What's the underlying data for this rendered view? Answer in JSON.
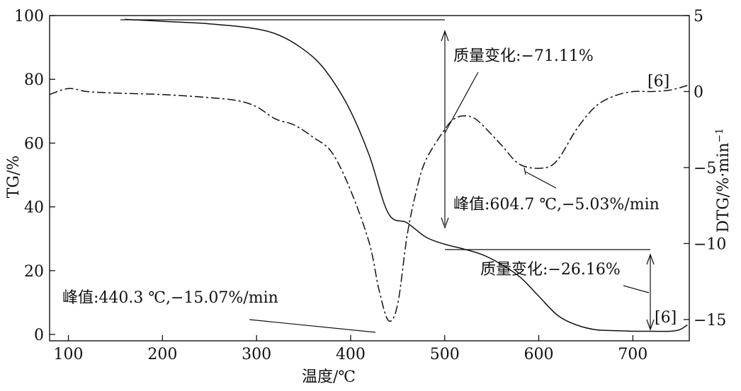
{
  "chart_data": {
    "type": "line",
    "xlabel": "温度/℃",
    "ylabel_left": "TG/%",
    "ylabel_right": "DTG/%·min",
    "ylabel_right_sup": "−1",
    "xlim": [
      80,
      760
    ],
    "ylim_left": [
      -2,
      100
    ],
    "ylim_right": [
      -16.4,
      5
    ],
    "x_ticks": [
      100,
      200,
      300,
      400,
      500,
      600,
      700
    ],
    "x_tick_labels": [
      "100",
      "200",
      "300",
      "400",
      "500",
      "600",
      "700"
    ],
    "y_left_ticks": [
      0,
      20,
      40,
      60,
      80,
      100
    ],
    "y_left_tick_labels": [
      "0",
      "20",
      "40",
      "60",
      "80",
      "100"
    ],
    "y_right_ticks": [
      5,
      0,
      -5,
      -10,
      -15
    ],
    "y_right_tick_labels": [
      "5",
      "0",
      "−5",
      "−10",
      "−15"
    ],
    "series": [
      {
        "axis": "left",
        "style": "solid",
        "x": [
          160,
          200,
          250,
          300,
          330,
          360,
          380,
          400,
          420,
          440,
          460,
          480,
          500,
          520,
          540,
          560,
          580,
          600,
          620,
          640,
          660,
          680,
          700,
          720,
          740,
          750,
          758
        ],
        "y": [
          98.8,
          98.2,
          97.4,
          95.8,
          93.0,
          87.0,
          80.0,
          70.0,
          56.0,
          38.0,
          35.0,
          30.5,
          28.3,
          26.8,
          25.0,
          22.0,
          18.0,
          12.0,
          6.0,
          3.0,
          1.5,
          1.2,
          1.0,
          1.0,
          1.0,
          1.5,
          3.0
        ]
      },
      {
        "axis": "right",
        "style": "dash-dot",
        "x": [
          80,
          100,
          120,
          150,
          200,
          250,
          280,
          300,
          320,
          340,
          360,
          380,
          400,
          420,
          430,
          440.3,
          450,
          460,
          470,
          480,
          500,
          510,
          520,
          530,
          540,
          560,
          580,
          604.7,
          620,
          640,
          660,
          680,
          700,
          720,
          740,
          758
        ],
        "y": [
          -0.2,
          0.2,
          0.0,
          -0.1,
          -0.2,
          -0.4,
          -0.6,
          -1.0,
          -1.8,
          -2.2,
          -3.0,
          -4.0,
          -6.5,
          -10.0,
          -13.0,
          -15.07,
          -14.0,
          -9.5,
          -6.5,
          -4.5,
          -2.5,
          -1.8,
          -1.6,
          -1.7,
          -2.2,
          -3.5,
          -4.8,
          -5.03,
          -4.5,
          -2.5,
          -1.0,
          -0.3,
          0.0,
          0.0,
          0.1,
          0.4
        ]
      }
    ],
    "annotations": {
      "mass_change_1": "质量变化:−71.11%",
      "peak_2": "峰值:604.7 ℃,−5.03%/min",
      "mass_change_2": "质量变化:−26.16%",
      "peak_1": "峰值:440.3 ℃,−15.07%/min",
      "ref_1": "[6]",
      "ref_2": "[6]"
    }
  }
}
